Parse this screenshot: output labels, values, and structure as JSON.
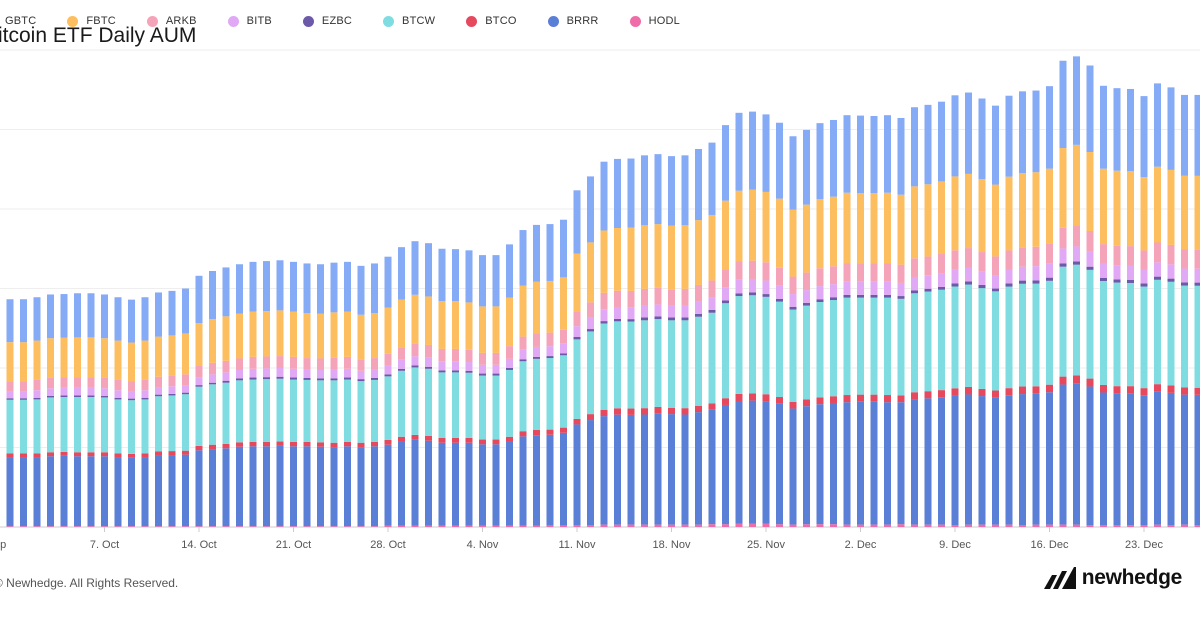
{
  "chart_data": {
    "type": "bar",
    "stacked": true,
    "title": "Bitcoin ETF Daily AUM",
    "legend_position": "top-left",
    "grid": true,
    "xlabel": "",
    "ylabel": "",
    "ylim": [
      0,
      120
    ],
    "x_ticks": [
      "Sep",
      "7. Oct",
      "14. Oct",
      "21. Oct",
      "28. Oct",
      "4. Nov",
      "11. Nov",
      "18. Nov",
      "25. Nov",
      "2. Dec",
      "9. Dec",
      "16. Dec",
      "23. Dec"
    ],
    "categories": [
      "29 Sep",
      "30 Sep",
      "1 Oct",
      "2 Oct",
      "3 Oct",
      "4 Oct",
      "5 Oct",
      "6 Oct",
      "7 Oct",
      "8 Oct",
      "9 Oct",
      "10 Oct",
      "11 Oct",
      "12 Oct",
      "13 Oct",
      "14 Oct",
      "15 Oct",
      "16 Oct",
      "17 Oct",
      "18 Oct",
      "19 Oct",
      "20 Oct",
      "21 Oct",
      "22 Oct",
      "23 Oct",
      "24 Oct",
      "25 Oct",
      "26 Oct",
      "27 Oct",
      "28 Oct",
      "29 Oct",
      "30 Oct",
      "31 Oct",
      "1 Nov",
      "2 Nov",
      "3 Nov",
      "4 Nov",
      "5 Nov",
      "6 Nov",
      "7 Nov",
      "8 Nov",
      "9 Nov",
      "10 Nov",
      "11 Nov",
      "12 Nov",
      "13 Nov",
      "14 Nov",
      "15 Nov",
      "16 Nov",
      "17 Nov",
      "18 Nov",
      "19 Nov",
      "20 Nov",
      "21 Nov",
      "22 Nov",
      "23 Nov",
      "24 Nov",
      "25 Nov",
      "26 Nov",
      "27 Nov",
      "28 Nov",
      "29 Nov",
      "30 Nov",
      "1 Dec",
      "2 Dec",
      "3 Dec",
      "4 Dec",
      "5 Dec",
      "6 Dec",
      "7 Dec",
      "8 Dec",
      "9 Dec",
      "10 Dec",
      "11 Dec",
      "12 Dec",
      "13 Dec",
      "14 Dec",
      "15 Dec",
      "16 Dec",
      "17 Dec",
      "18 Dec",
      "19 Dec",
      "20 Dec",
      "21 Dec",
      "22 Dec",
      "23 Dec",
      "24 Dec",
      "25 Dec",
      "26 Dec",
      "27 Dec"
    ],
    "totals": [
      58.5,
      57.3,
      57.3,
      57.8,
      58.5,
      58.6,
      58.8,
      58.8,
      58.5,
      57.8,
      57.2,
      57.8,
      59.0,
      59.4,
      60.0,
      63.2,
      64.4,
      65.3,
      66.1,
      66.7,
      66.9,
      67.1,
      66.7,
      66.3,
      66.1,
      66.5,
      66.7,
      65.7,
      66.3,
      68.0,
      70.4,
      71.9,
      71.4,
      70.0,
      69.9,
      69.6,
      68.4,
      68.4,
      71.1,
      74.7,
      76.0,
      76.2,
      77.3,
      84.7,
      88.2,
      91.9,
      92.6,
      92.7,
      93.5,
      93.8,
      93.3,
      93.5,
      95.1,
      96.7,
      101.1,
      104.2,
      104.5,
      103.8,
      101.7,
      98.3,
      99.9,
      101.6,
      102.4,
      103.6,
      103.5,
      103.4,
      103.6,
      102.9,
      105.6,
      106.2,
      107.0,
      108.6,
      109.3,
      107.8,
      106.0,
      108.5,
      109.6,
      109.8,
      110.9,
      117.3,
      118.4,
      116.1,
      111.0,
      110.4,
      110.2,
      108.4,
      111.6,
      110.6,
      108.7,
      108.7
    ],
    "series": [
      {
        "name": "GBTC",
        "color": "#85aaf6",
        "values": [
          11.0,
          10.8,
          10.8,
          10.9,
          11.0,
          11.0,
          11.1,
          11.1,
          11.0,
          10.9,
          10.8,
          10.9,
          11.1,
          11.2,
          11.3,
          11.9,
          12.1,
          12.3,
          12.4,
          12.5,
          12.6,
          12.6,
          12.5,
          12.5,
          12.4,
          12.5,
          12.5,
          12.3,
          12.5,
          12.8,
          13.2,
          13.5,
          13.4,
          13.2,
          13.1,
          13.1,
          12.9,
          12.9,
          13.4,
          14.0,
          14.3,
          14.3,
          14.5,
          15.9,
          16.6,
          17.3,
          17.4,
          17.4,
          17.6,
          17.6,
          17.5,
          17.6,
          17.9,
          18.2,
          19.0,
          19.6,
          19.6,
          19.5,
          19.1,
          18.5,
          18.8,
          19.1,
          19.3,
          19.5,
          19.5,
          19.4,
          19.5,
          19.3,
          19.9,
          20.0,
          20.1,
          20.4,
          20.5,
          20.3,
          19.9,
          20.4,
          20.6,
          20.6,
          20.8,
          22.0,
          22.3,
          21.8,
          20.9,
          20.8,
          20.7,
          20.4,
          21.0,
          20.8,
          20.4,
          20.4
        ]
      },
      {
        "name": "FBTC",
        "color": "#fcbe5e",
        "values": [
          10.0,
          9.8,
          9.8,
          9.9,
          10.0,
          10.0,
          10.1,
          10.1,
          10.0,
          9.9,
          9.8,
          9.9,
          10.1,
          10.2,
          10.3,
          10.8,
          11.0,
          11.2,
          11.3,
          11.4,
          11.4,
          11.5,
          11.4,
          11.3,
          11.3,
          11.4,
          11.4,
          11.2,
          11.3,
          11.6,
          12.0,
          12.3,
          12.2,
          12.0,
          12.0,
          11.9,
          11.7,
          11.7,
          12.2,
          12.8,
          13.0,
          13.0,
          13.2,
          14.5,
          15.1,
          15.7,
          15.8,
          15.9,
          16.0,
          16.0,
          16.0,
          16.0,
          16.3,
          16.5,
          17.3,
          17.8,
          17.9,
          17.7,
          17.4,
          16.8,
          17.1,
          17.4,
          17.5,
          17.7,
          17.7,
          17.7,
          17.7,
          17.6,
          18.1,
          18.2,
          18.3,
          18.6,
          18.7,
          18.4,
          18.1,
          18.6,
          18.7,
          18.8,
          19.0,
          20.1,
          20.3,
          19.9,
          19.0,
          18.9,
          18.9,
          18.5,
          19.1,
          18.9,
          18.6,
          18.6
        ]
      },
      {
        "name": "ARKB",
        "color": "#f5a3b8",
        "values": [
          2.6,
          2.5,
          2.5,
          2.6,
          2.6,
          2.6,
          2.6,
          2.6,
          2.6,
          2.6,
          2.5,
          2.6,
          2.6,
          2.6,
          2.7,
          2.8,
          2.9,
          2.9,
          2.9,
          3.0,
          3.0,
          3.0,
          3.0,
          2.9,
          2.9,
          3.0,
          3.0,
          2.9,
          2.9,
          3.0,
          3.1,
          3.2,
          3.2,
          3.1,
          3.1,
          3.1,
          3.0,
          3.0,
          3.2,
          3.3,
          3.4,
          3.4,
          3.4,
          3.8,
          3.9,
          4.1,
          4.1,
          4.1,
          4.2,
          4.2,
          4.1,
          4.2,
          4.2,
          4.3,
          4.5,
          4.6,
          4.6,
          4.6,
          4.5,
          4.4,
          4.4,
          4.5,
          4.5,
          4.6,
          4.6,
          4.6,
          4.6,
          4.6,
          4.7,
          4.7,
          4.8,
          4.8,
          4.9,
          4.8,
          4.7,
          4.8,
          4.9,
          4.9,
          4.9,
          5.2,
          5.3,
          5.2,
          4.9,
          4.9,
          4.9,
          4.8,
          5.0,
          4.9,
          4.8,
          4.8
        ]
      },
      {
        "name": "BITB",
        "color": "#e0a8f5",
        "values": [
          1.9,
          1.8,
          1.8,
          1.9,
          1.9,
          1.9,
          1.9,
          1.9,
          1.9,
          1.9,
          1.8,
          1.9,
          1.9,
          1.9,
          1.9,
          2.0,
          2.1,
          2.1,
          2.1,
          2.2,
          2.2,
          2.2,
          2.2,
          2.1,
          2.1,
          2.2,
          2.2,
          2.1,
          2.1,
          2.2,
          2.3,
          2.3,
          2.3,
          2.3,
          2.3,
          2.2,
          2.2,
          2.2,
          2.3,
          2.4,
          2.5,
          2.5,
          2.5,
          2.7,
          2.8,
          3.0,
          3.0,
          3.0,
          3.0,
          3.0,
          3.0,
          3.0,
          3.1,
          3.1,
          3.3,
          3.4,
          3.4,
          3.4,
          3.3,
          3.2,
          3.2,
          3.3,
          3.3,
          3.4,
          3.3,
          3.3,
          3.4,
          3.3,
          3.4,
          3.4,
          3.5,
          3.5,
          3.5,
          3.5,
          3.4,
          3.5,
          3.5,
          3.6,
          3.6,
          3.8,
          3.8,
          3.8,
          3.6,
          3.6,
          3.6,
          3.5,
          3.6,
          3.6,
          3.5,
          3.5
        ]
      },
      {
        "name": "EZBC",
        "color": "#6c5aa8",
        "values": [
          0.4,
          0.4,
          0.4,
          0.4,
          0.4,
          0.4,
          0.4,
          0.4,
          0.4,
          0.4,
          0.4,
          0.4,
          0.4,
          0.4,
          0.4,
          0.4,
          0.4,
          0.5,
          0.5,
          0.5,
          0.5,
          0.5,
          0.5,
          0.5,
          0.5,
          0.5,
          0.5,
          0.5,
          0.5,
          0.5,
          0.5,
          0.5,
          0.5,
          0.5,
          0.5,
          0.5,
          0.5,
          0.5,
          0.5,
          0.5,
          0.5,
          0.5,
          0.5,
          0.6,
          0.6,
          0.6,
          0.6,
          0.6,
          0.7,
          0.7,
          0.7,
          0.7,
          0.7,
          0.7,
          0.7,
          0.7,
          0.7,
          0.7,
          0.7,
          0.7,
          0.7,
          0.7,
          0.7,
          0.7,
          0.7,
          0.7,
          0.7,
          0.7,
          0.7,
          0.7,
          0.7,
          0.8,
          0.8,
          0.8,
          0.7,
          0.8,
          0.8,
          0.8,
          0.8,
          0.8,
          0.8,
          0.8,
          0.8,
          0.8,
          0.8,
          0.8,
          0.8,
          0.8,
          0.8,
          0.8
        ]
      },
      {
        "name": "BTCW",
        "color": "#7fdce0",
        "values": [
          13.8,
          13.5,
          13.5,
          13.6,
          13.8,
          13.8,
          13.9,
          13.9,
          13.8,
          13.6,
          13.5,
          13.6,
          13.9,
          14.0,
          14.2,
          14.9,
          15.2,
          15.4,
          15.6,
          15.7,
          15.8,
          15.8,
          15.7,
          15.6,
          15.6,
          15.7,
          15.7,
          15.5,
          15.6,
          16.0,
          16.6,
          17.0,
          16.9,
          16.5,
          16.5,
          16.4,
          16.1,
          16.1,
          16.8,
          17.6,
          17.9,
          18.0,
          18.2,
          20.0,
          20.8,
          21.7,
          21.9,
          21.9,
          22.1,
          22.1,
          22.0,
          22.1,
          22.4,
          22.8,
          23.9,
          24.6,
          24.7,
          24.5,
          24.0,
          23.2,
          23.6,
          24.0,
          24.2,
          24.5,
          24.4,
          24.4,
          24.5,
          24.3,
          24.9,
          25.1,
          25.3,
          25.6,
          25.8,
          25.4,
          25.0,
          25.6,
          25.9,
          25.9,
          26.2,
          27.7,
          27.9,
          27.4,
          26.2,
          26.1,
          26.0,
          25.6,
          26.3,
          26.1,
          25.7,
          25.7
        ]
      },
      {
        "name": "BTCO",
        "color": "#e6495e",
        "values": [
          1.0,
          1.0,
          1.0,
          1.0,
          1.0,
          1.0,
          1.0,
          1.0,
          1.0,
          1.0,
          1.0,
          1.0,
          1.0,
          1.0,
          1.0,
          1.1,
          1.1,
          1.1,
          1.1,
          1.1,
          1.1,
          1.1,
          1.1,
          1.1,
          1.1,
          1.1,
          1.1,
          1.1,
          1.1,
          1.2,
          1.2,
          1.2,
          1.2,
          1.2,
          1.2,
          1.2,
          1.2,
          1.2,
          1.2,
          1.3,
          1.3,
          1.3,
          1.3,
          1.4,
          1.5,
          1.6,
          1.6,
          1.6,
          1.6,
          1.6,
          1.6,
          1.6,
          1.6,
          1.6,
          1.7,
          1.8,
          1.8,
          1.8,
          1.7,
          1.7,
          1.7,
          1.7,
          1.7,
          1.8,
          1.8,
          1.8,
          1.8,
          1.7,
          1.8,
          1.8,
          1.8,
          1.8,
          1.9,
          1.8,
          1.8,
          1.8,
          1.9,
          1.9,
          1.9,
          2.0,
          2.0,
          2.0,
          1.9,
          1.9,
          1.9,
          1.8,
          1.9,
          1.9,
          1.8,
          1.8
        ]
      },
      {
        "name": "BRRR",
        "color": "#5a7fd6",
        "values": [
          17.6,
          17.3,
          17.3,
          17.3,
          17.6,
          17.7,
          17.6,
          17.6,
          17.6,
          17.3,
          17.2,
          17.3,
          17.8,
          17.9,
          18.0,
          19.1,
          19.4,
          19.6,
          20.0,
          20.1,
          20.1,
          20.2,
          20.1,
          20.1,
          20.0,
          19.9,
          20.1,
          19.9,
          20.1,
          20.4,
          21.2,
          21.7,
          21.4,
          20.9,
          20.9,
          20.9,
          20.5,
          20.5,
          21.2,
          22.5,
          22.8,
          22.8,
          23.3,
          25.3,
          26.4,
          27.3,
          27.7,
          27.6,
          27.7,
          28.0,
          27.8,
          27.7,
          28.3,
          28.8,
          30.0,
          30.9,
          31.0,
          30.8,
          30.3,
          29.2,
          29.7,
          30.2,
          30.5,
          30.8,
          30.9,
          30.9,
          30.8,
          30.7,
          31.5,
          31.8,
          32.1,
          32.6,
          32.8,
          32.4,
          32.0,
          32.6,
          33.0,
          33.0,
          33.4,
          35.3,
          35.6,
          34.9,
          33.4,
          33.1,
          33.1,
          32.7,
          33.5,
          33.3,
          32.8,
          32.8
        ]
      },
      {
        "name": "HODL",
        "color": "#f06ca8",
        "values": [
          0.2,
          0.2,
          0.2,
          0.2,
          0.2,
          0.2,
          0.2,
          0.2,
          0.2,
          0.2,
          0.2,
          0.2,
          0.2,
          0.2,
          0.2,
          0.2,
          0.2,
          0.2,
          0.2,
          0.2,
          0.2,
          0.2,
          0.2,
          0.2,
          0.2,
          0.2,
          0.2,
          0.2,
          0.2,
          0.3,
          0.3,
          0.3,
          0.3,
          0.3,
          0.3,
          0.3,
          0.3,
          0.3,
          0.3,
          0.3,
          0.3,
          0.4,
          0.4,
          0.5,
          0.5,
          0.6,
          0.6,
          0.6,
          0.6,
          0.6,
          0.6,
          0.6,
          0.6,
          0.7,
          0.7,
          0.8,
          0.8,
          0.8,
          0.7,
          0.6,
          0.7,
          0.7,
          0.7,
          0.6,
          0.6,
          0.6,
          0.6,
          0.7,
          0.6,
          0.6,
          0.6,
          0.5,
          0.6,
          0.6,
          0.6,
          0.6,
          0.5,
          0.6,
          0.6,
          0.6,
          0.6,
          0.5,
          0.5,
          0.5,
          0.5,
          0.5,
          0.6,
          0.5,
          0.6,
          0.5
        ]
      }
    ]
  },
  "footer": {
    "copyright": "© Newhedge. All Rights Reserved.",
    "brand_name": "newhedge"
  },
  "colors": {
    "grid": "#eeeeee",
    "axis": "#cccccc",
    "brand": "#111111"
  }
}
